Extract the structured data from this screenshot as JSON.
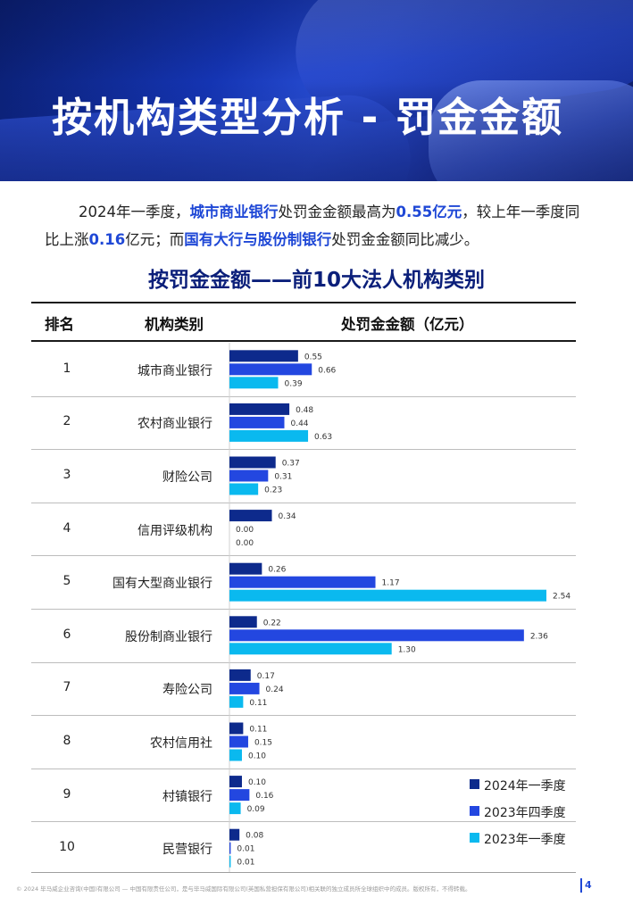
{
  "hero": {
    "title": "按机构类型分析 - 罚金金额"
  },
  "intro": {
    "p1": "2024年一季度，",
    "hl1": "城市商业银行",
    "p2": "处罚金金额最高为",
    "hl2": "0.55亿元",
    "p3": "，较上年一季度同比上涨",
    "hl3": "0.16",
    "p4": "亿元；而",
    "hl4": "国有大行与股份制银行",
    "p5": "处罚金金额同比减少。"
  },
  "table": {
    "header_rank": "排名",
    "header_type": "机构类别",
    "header_amount": "处罚金金额（亿元）",
    "rows": [
      {
        "rank": "1",
        "type": "城市商业银行"
      },
      {
        "rank": "2",
        "type": "农村商业银行"
      },
      {
        "rank": "3",
        "type": "财险公司"
      },
      {
        "rank": "4",
        "type": "信用评级机构"
      },
      {
        "rank": "5",
        "type": "国有大型商业银行"
      },
      {
        "rank": "6",
        "type": "股份制商业银行"
      },
      {
        "rank": "7",
        "type": "寿险公司"
      },
      {
        "rank": "8",
        "type": "农村信用社"
      },
      {
        "rank": "9",
        "type": "村镇银行"
      },
      {
        "rank": "10",
        "type": "民营银行"
      }
    ]
  },
  "chart_data": {
    "type": "bar",
    "orientation": "horizontal",
    "title": "按罚金金额——前10大法人机构类别",
    "xlabel": "处罚金金额（亿元）",
    "categories": [
      "城市商业银行",
      "农村商业银行",
      "财险公司",
      "信用评级机构",
      "国有大型商业银行",
      "股份制商业银行",
      "寿险公司",
      "农村信用社",
      "村镇银行",
      "民营银行"
    ],
    "series": [
      {
        "name": "2024年一季度",
        "color": "#0d2a8c",
        "values": [
          0.55,
          0.48,
          0.37,
          0.34,
          0.26,
          0.22,
          0.17,
          0.11,
          0.1,
          0.08
        ],
        "labels": [
          "0.55",
          "0.48",
          "0.37",
          "0.34",
          "0.26",
          "0.22",
          "0.17",
          "0.11",
          "0.10",
          "0.08"
        ]
      },
      {
        "name": "2023年四季度",
        "color": "#2347e0",
        "values": [
          0.66,
          0.44,
          0.31,
          0.0,
          1.17,
          2.36,
          0.24,
          0.15,
          0.16,
          0.01
        ],
        "labels": [
          "0.66",
          "0.44",
          "0.31",
          "0.00",
          "1.17",
          "2.36",
          "0.24",
          "0.15",
          "0.16",
          "0.01"
        ]
      },
      {
        "name": "2023年一季度",
        "color": "#0ab9ef",
        "values": [
          0.39,
          0.63,
          0.23,
          0.0,
          2.54,
          1.3,
          0.11,
          0.1,
          0.09,
          0.01
        ],
        "labels": [
          "0.39",
          "0.63",
          "0.23",
          "0.00",
          "2.54",
          "1.30",
          "0.11",
          "0.10",
          "0.09",
          "0.01"
        ]
      }
    ],
    "xlim": [
      0,
      2.54
    ],
    "grid": false,
    "legend_position": "bottom-right"
  },
  "legend": {
    "items": [
      {
        "label": "2024年一季度",
        "color": "#0d2a8c"
      },
      {
        "label": "2023年四季度",
        "color": "#2347e0"
      },
      {
        "label": "2023年一季度",
        "color": "#0ab9ef"
      }
    ]
  },
  "footer": {
    "text": "© 2024 毕马威企业咨询(中国)有限公司 — 中国有限责任公司，是与毕马威国际有限公司(英国私营担保有限公司)相关联的独立成员所全球组织中的成员。版权所有，不得转载。",
    "page": "4"
  }
}
